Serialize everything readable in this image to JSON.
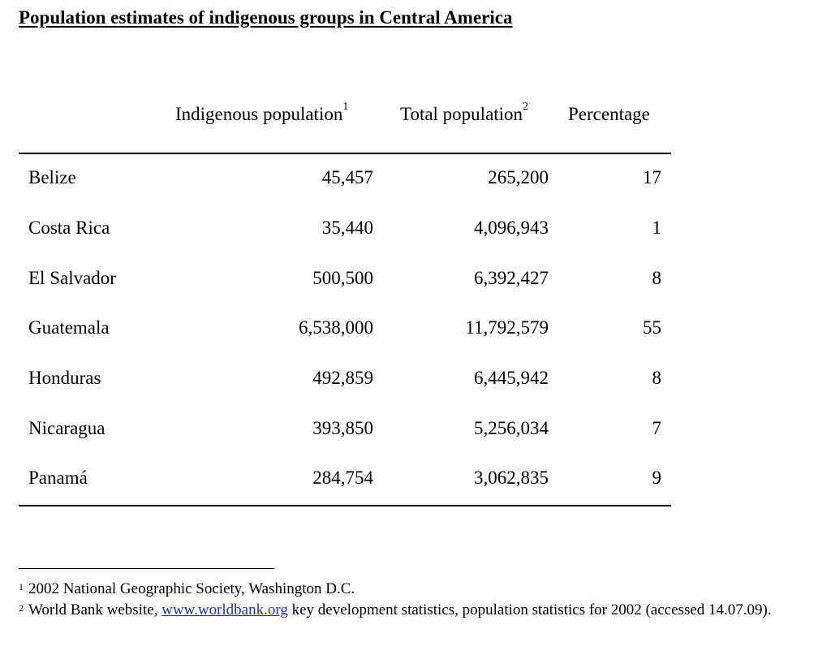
{
  "title": "Population estimates of indigenous groups in Central America",
  "table": {
    "headers": {
      "indigenous": "Indigenous population",
      "indigenous_sup": "1",
      "total": "Total population",
      "total_sup": "2",
      "percentage": "Percentage"
    },
    "rows": [
      {
        "country": "Belize",
        "indigenous": "45,457",
        "total": "265,200",
        "percentage": "17"
      },
      {
        "country": "Costa Rica",
        "indigenous": "35,440",
        "total": "4,096,943",
        "percentage": "1"
      },
      {
        "country": "El Salvador",
        "indigenous": "500,500",
        "total": "6,392,427",
        "percentage": "8"
      },
      {
        "country": "Guatemala",
        "indigenous": "6,538,000",
        "total": "11,792,579",
        "percentage": "55"
      },
      {
        "country": "Honduras",
        "indigenous": "492,859",
        "total": "6,445,942",
        "percentage": "8"
      },
      {
        "country": "Nicaragua",
        "indigenous": "393,850",
        "total": "5,256,034",
        "percentage": "7"
      },
      {
        "country": "Panamá",
        "indigenous": "284,754",
        "total": "3,062,835",
        "percentage": "9"
      }
    ]
  },
  "footnotes": {
    "fn1_marker": "1",
    "fn1_text": "2002 National Geographic Society, Washington D.C.",
    "fn2_marker": "2",
    "fn2_before": "World Bank website, ",
    "fn2_link": "www.worldbank.org",
    "fn2_after": " key development statistics, population statistics for 2002 (accessed 14.07.09)."
  }
}
